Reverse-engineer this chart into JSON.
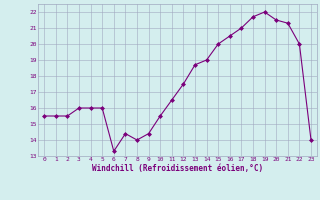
{
  "x": [
    0,
    1,
    2,
    3,
    4,
    5,
    6,
    7,
    8,
    9,
    10,
    11,
    12,
    13,
    14,
    15,
    16,
    17,
    18,
    19,
    20,
    21,
    22,
    23
  ],
  "y": [
    15.5,
    15.5,
    15.5,
    16.0,
    16.0,
    16.0,
    13.3,
    14.4,
    14.0,
    14.4,
    15.5,
    16.5,
    17.5,
    18.7,
    19.0,
    20.0,
    20.5,
    21.0,
    21.7,
    22.0,
    21.5,
    21.3,
    20.0,
    14.0
  ],
  "xlim": [
    -0.5,
    23.5
  ],
  "ylim": [
    13,
    22.5
  ],
  "yticks": [
    13,
    14,
    15,
    16,
    17,
    18,
    19,
    20,
    21,
    22
  ],
  "xticks": [
    0,
    1,
    2,
    3,
    4,
    5,
    6,
    7,
    8,
    9,
    10,
    11,
    12,
    13,
    14,
    15,
    16,
    17,
    18,
    19,
    20,
    21,
    22,
    23
  ],
  "xlabel": "Windchill (Refroidissement éolien,°C)",
  "line_color": "#7B007B",
  "marker": "D",
  "bg_color": "#d4eeee",
  "grid_color": "#a0a8c0",
  "font_color": "#7B007B"
}
